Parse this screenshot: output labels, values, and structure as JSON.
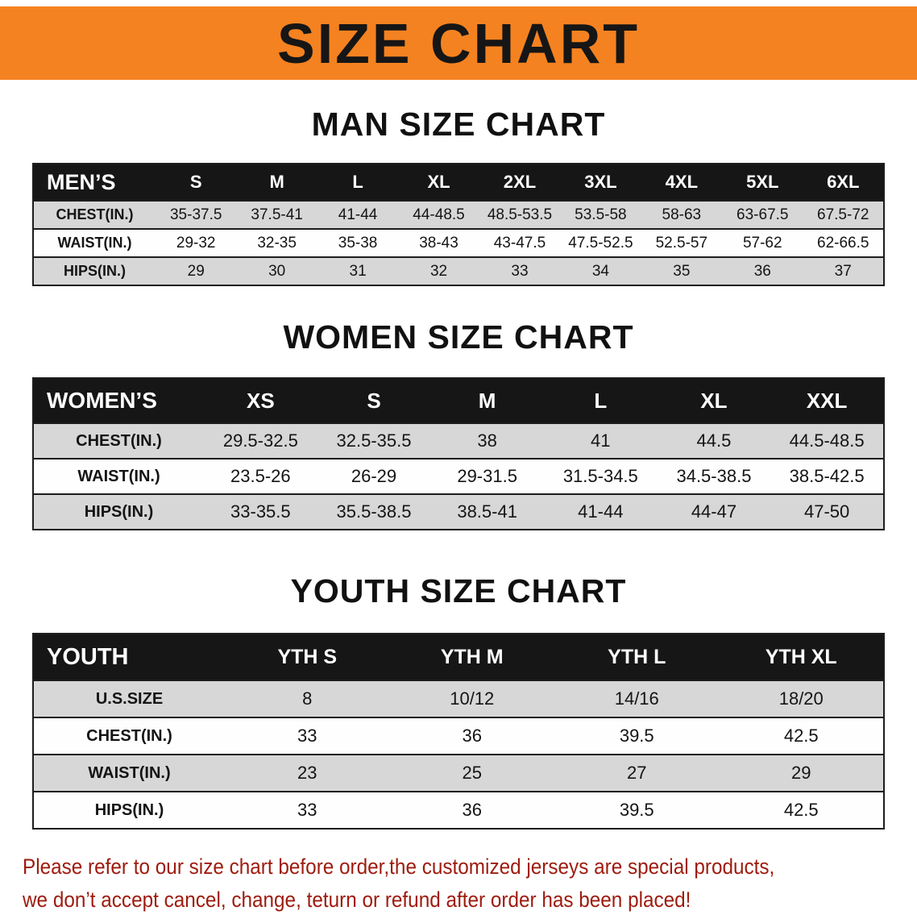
{
  "banner": {
    "title": "SIZE CHART"
  },
  "sections": {
    "men": {
      "heading": "MAN SIZE CHART",
      "table": {
        "header": [
          "MEN’S",
          "S",
          "M",
          "L",
          "XL",
          "2XL",
          "3XL",
          "4XL",
          "5XL",
          "6XL"
        ],
        "rows": [
          [
            "CHEST(IN.)",
            "35-37.5",
            "37.5-41",
            "41-44",
            "44-48.5",
            "48.5-53.5",
            "53.5-58",
            "58-63",
            "63-67.5",
            "67.5-72"
          ],
          [
            "WAIST(IN.)",
            "29-32",
            "32-35",
            "35-38",
            "38-43",
            "43-47.5",
            "47.5-52.5",
            "52.5-57",
            "57-62",
            "62-66.5"
          ],
          [
            "HIPS(IN.)",
            "29",
            "30",
            "31",
            "32",
            "33",
            "34",
            "35",
            "36",
            "37"
          ]
        ]
      }
    },
    "women": {
      "heading": "WOMEN SIZE CHART",
      "table": {
        "header": [
          "WOMEN’S",
          "XS",
          "S",
          "M",
          "L",
          "XL",
          "XXL"
        ],
        "rows": [
          [
            "CHEST(IN.)",
            "29.5-32.5",
            "32.5-35.5",
            "38",
            "41",
            "44.5",
            "44.5-48.5"
          ],
          [
            "WAIST(IN.)",
            "23.5-26",
            "26-29",
            "29-31.5",
            "31.5-34.5",
            "34.5-38.5",
            "38.5-42.5"
          ],
          [
            "HIPS(IN.)",
            "33-35.5",
            "35.5-38.5",
            "38.5-41",
            "41-44",
            "44-47",
            "47-50"
          ]
        ]
      }
    },
    "youth": {
      "heading": "YOUTH SIZE CHART",
      "table": {
        "header": [
          "YOUTH",
          "YTH S",
          "YTH M",
          "YTH L",
          "YTH XL"
        ],
        "rows": [
          [
            "U.S.SIZE",
            "8",
            "10/12",
            "14/16",
            "18/20"
          ],
          [
            "CHEST(IN.)",
            "33",
            "36",
            "39.5",
            "42.5"
          ],
          [
            "WAIST(IN.)",
            "23",
            "25",
            "27",
            "29"
          ],
          [
            "HIPS(IN.)",
            "33",
            "36",
            "39.5",
            "42.5"
          ]
        ]
      }
    }
  },
  "footer": {
    "line1": "Please refer to our size chart before order,the customized jerseys are special products,",
    "line2": "we don’t accept cancel, change, teturn or refund after order has been placed!"
  },
  "colors": {
    "banner_bg": "#f58220",
    "header_bg": "#161616",
    "row_alt_bg": "#d7d7d7",
    "row_bg": "#fefefe",
    "table_border": "#1d1d1d",
    "footer_text": "#9e1b0e"
  }
}
